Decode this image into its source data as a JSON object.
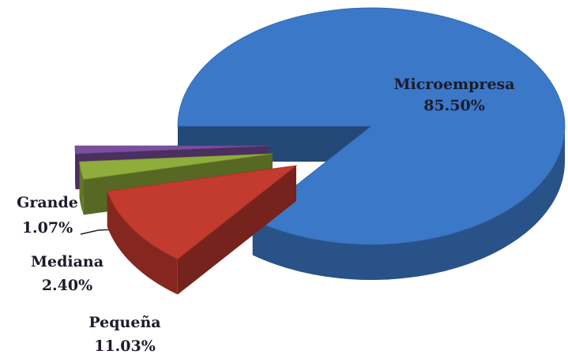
{
  "chart_data": {
    "type": "pie",
    "categories": [
      "Microempresa",
      "Pequeña",
      "Mediana",
      "Grande"
    ],
    "values": [
      85.5,
      11.03,
      2.4,
      1.07
    ],
    "value_labels": [
      "85.50%",
      "11.03%",
      "2.40%",
      "1.07%"
    ],
    "colors": [
      "#3b78c8",
      "#c33a2e",
      "#8fad3b",
      "#7b4f9f"
    ]
  }
}
